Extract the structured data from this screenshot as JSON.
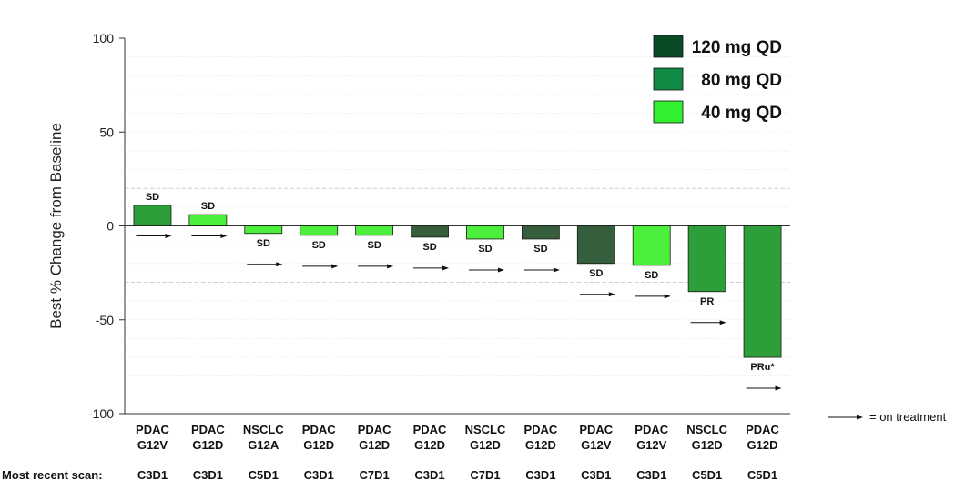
{
  "chart_data": {
    "type": "bar",
    "ylabel": "Best % Change from Baseline",
    "ylim": [
      -100,
      100
    ],
    "yticks": [
      100,
      50,
      0,
      -50,
      -100
    ],
    "reference_lines": [
      20,
      -30
    ],
    "grid": true,
    "legend_position": "top-right",
    "legend": [
      {
        "label": "120 mg QD",
        "color": "#0a4a25"
      },
      {
        "label": "80 mg QD",
        "color": "#118a45"
      },
      {
        "label": "40 mg QD",
        "color": "#33f033"
      }
    ],
    "colors": {
      "dark": "#355e3d",
      "mid": "#2e9e3a",
      "light": "#4cf03c",
      "axis": "#333333",
      "grid": "#e6e6e6"
    },
    "bars": [
      {
        "cat": "PDAC",
        "sub": "G12V",
        "scan": "C3D1",
        "value": 11,
        "response": "SD",
        "color": "#2e9e3a"
      },
      {
        "cat": "PDAC",
        "sub": "G12D",
        "scan": "C3D1",
        "value": 6,
        "response": "SD",
        "color": "#4cf03c"
      },
      {
        "cat": "NSCLC",
        "sub": "G12A",
        "scan": "C5D1",
        "value": -4,
        "response": "SD",
        "color": "#4cf03c"
      },
      {
        "cat": "PDAC",
        "sub": "G12D",
        "scan": "C3D1",
        "value": -5,
        "response": "SD",
        "color": "#4cf03c"
      },
      {
        "cat": "PDAC",
        "sub": "G12D",
        "scan": "C7D1",
        "value": -5,
        "response": "SD",
        "color": "#4cf03c"
      },
      {
        "cat": "PDAC",
        "sub": "G12D",
        "scan": "C3D1",
        "value": -6,
        "response": "SD",
        "color": "#355e3d"
      },
      {
        "cat": "NSCLC",
        "sub": "G12D",
        "scan": "C7D1",
        "value": -7,
        "response": "SD",
        "color": "#4cf03c"
      },
      {
        "cat": "PDAC",
        "sub": "G12D",
        "scan": "C3D1",
        "value": -7,
        "response": "SD",
        "color": "#355e3d"
      },
      {
        "cat": "PDAC",
        "sub": "G12V",
        "scan": "C3D1",
        "value": -20,
        "response": "SD",
        "color": "#355e3d"
      },
      {
        "cat": "PDAC",
        "sub": "G12V",
        "scan": "C3D1",
        "value": -21,
        "response": "SD",
        "color": "#4cf03c"
      },
      {
        "cat": "NSCLC",
        "sub": "G12D",
        "scan": "C5D1",
        "value": -35,
        "response": "PR",
        "color": "#2e9e3a"
      },
      {
        "cat": "PDAC",
        "sub": "G12D",
        "scan": "C5D1",
        "value": -70,
        "response": "PRu*",
        "color": "#2e9e3a"
      }
    ],
    "scan_row_label": "Most recent scan:",
    "arrow_note": "= on treatment"
  }
}
